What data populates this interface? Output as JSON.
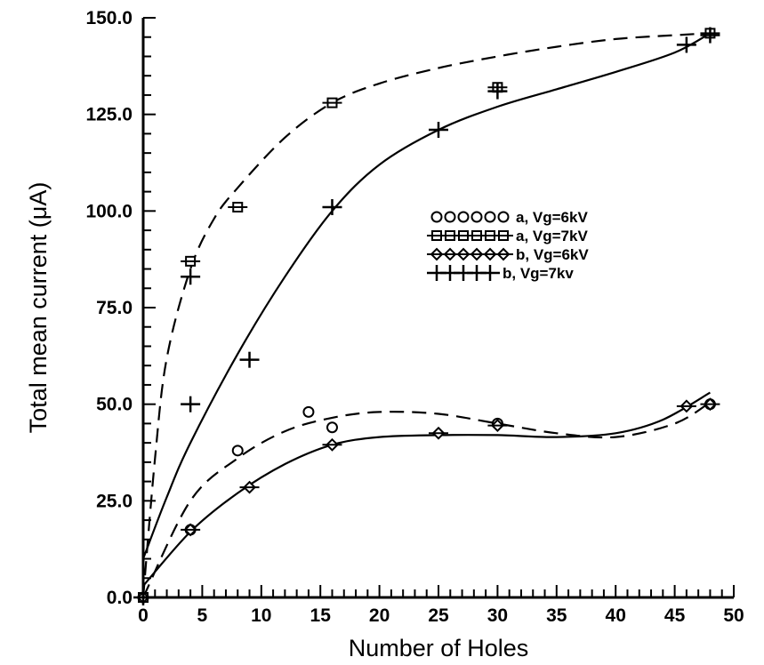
{
  "chart_data": {
    "type": "scatter",
    "xlabel": "Number of Holes",
    "ylabel": "Total mean current (μA)",
    "xlim": [
      0,
      50
    ],
    "ylim": [
      0,
      150
    ],
    "x_ticks": [
      "0",
      "5",
      "10",
      "15",
      "20",
      "25",
      "30",
      "35",
      "40",
      "45",
      "50"
    ],
    "y_ticks": [
      "0.0",
      "25.0",
      "50.0",
      "75.0",
      "100.0",
      "125.0",
      "150.0"
    ],
    "legend_position": "center-right",
    "grid": false,
    "series": [
      {
        "name": "a, Vg=6kV",
        "legend_symbols": "oooooo",
        "marker": "circle",
        "points": [
          [
            0,
            0
          ],
          [
            4,
            17.5
          ],
          [
            8,
            38
          ],
          [
            14,
            48
          ],
          [
            16,
            44
          ],
          [
            30,
            45
          ],
          [
            48,
            50
          ]
        ],
        "fit_style": "dashed",
        "fit": [
          [
            0,
            0
          ],
          [
            4,
            25
          ],
          [
            8,
            36
          ],
          [
            12,
            43
          ],
          [
            16,
            46.5
          ],
          [
            20,
            48
          ],
          [
            25,
            47.5
          ],
          [
            30,
            45
          ],
          [
            35,
            42.5
          ],
          [
            40,
            41.5
          ],
          [
            45,
            45
          ],
          [
            48,
            50.5
          ]
        ]
      },
      {
        "name": "a, Vg=7kV",
        "legend_symbols": "oooooo",
        "marker": "square",
        "points": [
          [
            0,
            0
          ],
          [
            4,
            87
          ],
          [
            8,
            101
          ],
          [
            16,
            128
          ],
          [
            30,
            132
          ],
          [
            48,
            146
          ]
        ],
        "fit_style": "dashed",
        "fit": [
          [
            0,
            0
          ],
          [
            1,
            36
          ],
          [
            2,
            62
          ],
          [
            4,
            85
          ],
          [
            6,
            98
          ],
          [
            8,
            106
          ],
          [
            12,
            119
          ],
          [
            16,
            128
          ],
          [
            20,
            133
          ],
          [
            25,
            137
          ],
          [
            30,
            140
          ],
          [
            35,
            142.5
          ],
          [
            40,
            144.5
          ],
          [
            45,
            145.5
          ],
          [
            48,
            146
          ]
        ]
      },
      {
        "name": "b, Vg=6kV",
        "legend_symbols": "oooooo",
        "marker": "diamond",
        "points": [
          [
            0,
            0
          ],
          [
            4,
            17.5
          ],
          [
            9,
            28.5
          ],
          [
            16,
            39.5
          ],
          [
            25,
            42.5
          ],
          [
            30,
            44.5
          ],
          [
            46,
            49.5
          ],
          [
            48,
            50
          ]
        ],
        "fit_style": "solid",
        "fit": [
          [
            0,
            3
          ],
          [
            4,
            17
          ],
          [
            8,
            27
          ],
          [
            12,
            34.5
          ],
          [
            16,
            39.5
          ],
          [
            20,
            41.5
          ],
          [
            25,
            42
          ],
          [
            30,
            42
          ],
          [
            35,
            41.5
          ],
          [
            40,
            42.5
          ],
          [
            44,
            46
          ],
          [
            48,
            53
          ]
        ]
      },
      {
        "name": "b, Vg=7kv",
        "legend_symbols": "+++++",
        "marker": "plus",
        "points": [
          [
            0,
            0
          ],
          [
            4,
            50
          ],
          [
            4,
            83
          ],
          [
            9,
            61.5
          ],
          [
            16,
            101
          ],
          [
            25,
            121
          ],
          [
            30,
            131
          ],
          [
            46,
            143
          ],
          [
            48,
            145.5
          ]
        ],
        "fit_style": "solid",
        "fit": [
          [
            0,
            10
          ],
          [
            2,
            26
          ],
          [
            4,
            40
          ],
          [
            8,
            63
          ],
          [
            12,
            83
          ],
          [
            16,
            100
          ],
          [
            20,
            112
          ],
          [
            25,
            121
          ],
          [
            30,
            127
          ],
          [
            35,
            131.5
          ],
          [
            40,
            136
          ],
          [
            45,
            141
          ],
          [
            48,
            146
          ]
        ]
      }
    ]
  }
}
